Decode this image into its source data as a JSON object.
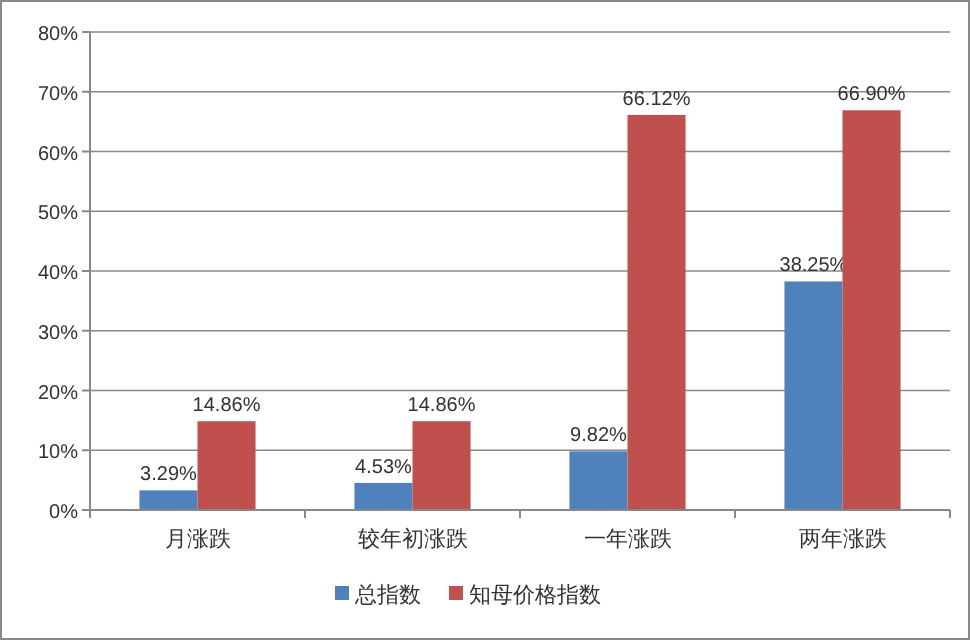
{
  "chart_data": {
    "type": "bar",
    "categories": [
      "月涨跌",
      "较年初涨跌",
      "一年涨跌",
      "两年涨跌"
    ],
    "series": [
      {
        "name": "总指数",
        "color": "#4f81bd",
        "values": [
          3.29,
          4.53,
          9.82,
          38.25
        ],
        "value_labels": [
          "3.29%",
          "4.53%",
          "9.82%",
          "38.25%"
        ]
      },
      {
        "name": "知母价格指数",
        "color": "#c0504d",
        "values": [
          14.86,
          14.86,
          66.12,
          66.9
        ],
        "value_labels": [
          "14.86%",
          "14.86%",
          "66.12%",
          "66.90%"
        ]
      }
    ],
    "ylim": [
      0,
      80
    ],
    "yticks": [
      {
        "value": 0,
        "label": "0%"
      },
      {
        "value": 10,
        "label": "10%"
      },
      {
        "value": 20,
        "label": "20%"
      },
      {
        "value": 30,
        "label": "30%"
      },
      {
        "value": 40,
        "label": "40%"
      },
      {
        "value": 50,
        "label": "50%"
      },
      {
        "value": 60,
        "label": "60%"
      },
      {
        "value": 70,
        "label": "70%"
      },
      {
        "value": 80,
        "label": "80%"
      }
    ],
    "grid": "y",
    "legend": "bottom"
  }
}
